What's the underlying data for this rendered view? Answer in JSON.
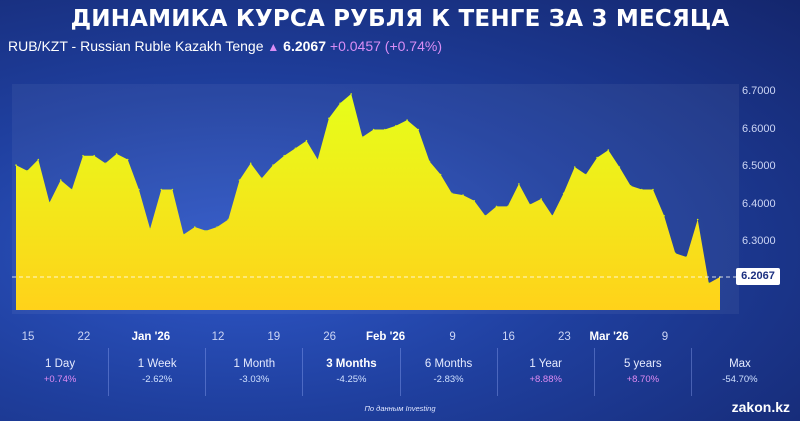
{
  "header": {
    "title": "ДИНАМИКА КУРСА РУБЛЯ К ТЕНГЕ ЗА 3 МЕСЯЦА",
    "pair": "RUB/KZT - Russian Ruble Kazakh Tenge",
    "price": "6.2067",
    "change": "+0.0457",
    "change_pct": "(+0.74%)"
  },
  "colors": {
    "area_top": "#e6ff1a",
    "area_bottom": "#ffd21a",
    "accent_positive": "#e08cf3",
    "background": "#1f3f9e"
  },
  "chart_data": {
    "type": "area",
    "title": "",
    "xlabel": "",
    "ylabel": "",
    "ylim": [
      6.14,
      6.73
    ],
    "grid": false,
    "y_ticks": [
      "6.7000",
      "6.6000",
      "6.5000",
      "6.4000",
      "6.3000"
    ],
    "x_ticks": [
      {
        "label": "15",
        "x": 0
      },
      {
        "label": "22",
        "x": 5
      },
      {
        "label": "Jan '26",
        "x": 11
      },
      {
        "label": "12",
        "x": 17
      },
      {
        "label": "19",
        "x": 22
      },
      {
        "label": "26",
        "x": 27
      },
      {
        "label": "Feb '26",
        "x": 32
      },
      {
        "label": "9",
        "x": 38
      },
      {
        "label": "16",
        "x": 43
      },
      {
        "label": "23",
        "x": 48
      },
      {
        "label": "Mar '26",
        "x": 52
      },
      {
        "label": "9",
        "x": 57
      }
    ],
    "current_label": "6.2067",
    "values": [
      6.505,
      6.49,
      6.52,
      6.405,
      6.465,
      6.44,
      6.53,
      6.53,
      6.51,
      6.535,
      6.52,
      6.44,
      6.335,
      6.44,
      6.44,
      6.32,
      6.34,
      6.33,
      6.34,
      6.36,
      6.465,
      6.51,
      6.47,
      6.505,
      6.53,
      6.55,
      6.57,
      6.52,
      6.63,
      6.67,
      6.695,
      6.58,
      6.6,
      6.6,
      6.61,
      6.625,
      6.6,
      6.515,
      6.48,
      6.43,
      6.425,
      6.41,
      6.37,
      6.395,
      6.395,
      6.455,
      6.4,
      6.415,
      6.37,
      6.43,
      6.5,
      6.48,
      6.525,
      6.545,
      6.5,
      6.45,
      6.44,
      6.44,
      6.37,
      6.27,
      6.26,
      6.36,
      6.19,
      6.2067
    ]
  },
  "periods": [
    {
      "label": "1 Day",
      "value": "+0.74%",
      "sign": "pos"
    },
    {
      "label": "1 Week",
      "value": "-2.62%",
      "sign": "neg"
    },
    {
      "label": "1 Month",
      "value": "-3.03%",
      "sign": "neg"
    },
    {
      "label": "3 Months",
      "value": "-4.25%",
      "sign": "neg",
      "active": true
    },
    {
      "label": "6 Months",
      "value": "-2.83%",
      "sign": "neg"
    },
    {
      "label": "1 Year",
      "value": "+8.88%",
      "sign": "pos"
    },
    {
      "label": "5 years",
      "value": "+8.70%",
      "sign": "pos"
    },
    {
      "label": "Max",
      "value": "-54.70%",
      "sign": "neg"
    }
  ],
  "source": "По данным Investing",
  "brand": "zakon.kz"
}
